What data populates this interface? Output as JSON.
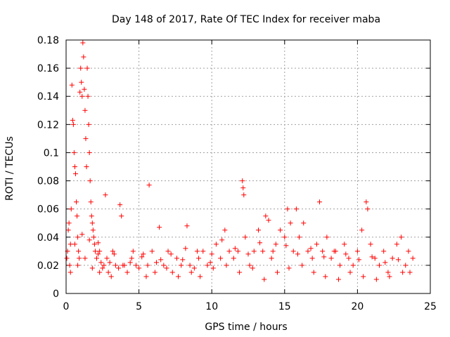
{
  "chart_data": {
    "type": "scatter",
    "title": "Day 148 of 2017, Rate Of TEC Index for receiver maba",
    "xlabel": "GPS time / hours",
    "ylabel": "ROTI / TECUs",
    "xlim": [
      0,
      25
    ],
    "ylim": [
      0,
      0.18
    ],
    "xticks": [
      0,
      5,
      10,
      15,
      20,
      25
    ],
    "yticks": [
      0,
      0.02,
      0.04,
      0.06,
      0.08,
      0.1,
      0.12,
      0.14,
      0.16,
      0.18
    ],
    "xtick_labels": [
      "0",
      "5",
      "10",
      "15",
      "20",
      "25"
    ],
    "ytick_labels": [
      "0",
      "0.02",
      "0.04",
      "0.06",
      "0.08",
      "0.1",
      "0.12",
      "0.14",
      "0.16",
      "0.18"
    ],
    "grid": true,
    "marker": "+",
    "color": "#ff0000",
    "points": [
      [
        0.05,
        0.025
      ],
      [
        0.1,
        0.03
      ],
      [
        0.15,
        0.045
      ],
      [
        0.2,
        0.05
      ],
      [
        0.25,
        0.02
      ],
      [
        0.3,
        0.035
      ],
      [
        0.35,
        0.06
      ],
      [
        0.4,
        0.148
      ],
      [
        0.45,
        0.123
      ],
      [
        0.5,
        0.12
      ],
      [
        0.55,
        0.1
      ],
      [
        0.6,
        0.09
      ],
      [
        0.65,
        0.085
      ],
      [
        0.7,
        0.065
      ],
      [
        0.75,
        0.055
      ],
      [
        0.8,
        0.04
      ],
      [
        0.85,
        0.03
      ],
      [
        0.9,
        0.025
      ],
      [
        0.95,
        0.143
      ],
      [
        1.0,
        0.16
      ],
      [
        1.05,
        0.15
      ],
      [
        1.1,
        0.14
      ],
      [
        1.15,
        0.178
      ],
      [
        1.2,
        0.168
      ],
      [
        1.25,
        0.145
      ],
      [
        1.3,
        0.13
      ],
      [
        1.35,
        0.11
      ],
      [
        1.4,
        0.09
      ],
      [
        1.45,
        0.16
      ],
      [
        1.5,
        0.14
      ],
      [
        1.55,
        0.12
      ],
      [
        1.6,
        0.1
      ],
      [
        1.65,
        0.08
      ],
      [
        1.7,
        0.065
      ],
      [
        1.75,
        0.055
      ],
      [
        1.8,
        0.05
      ],
      [
        1.85,
        0.045
      ],
      [
        1.9,
        0.04
      ],
      [
        1.95,
        0.035
      ],
      [
        2.0,
        0.03
      ],
      [
        2.1,
        0.025
      ],
      [
        2.2,
        0.028
      ],
      [
        2.3,
        0.03
      ],
      [
        2.4,
        0.022
      ],
      [
        2.5,
        0.018
      ],
      [
        2.6,
        0.02
      ],
      [
        2.7,
        0.07
      ],
      [
        2.8,
        0.025
      ],
      [
        2.9,
        0.015
      ],
      [
        3.0,
        0.022
      ],
      [
        3.2,
        0.03
      ],
      [
        3.4,
        0.02
      ],
      [
        3.6,
        0.018
      ],
      [
        3.7,
        0.063
      ],
      [
        3.8,
        0.055
      ],
      [
        3.9,
        0.02
      ],
      [
        4.2,
        0.015
      ],
      [
        4.5,
        0.025
      ],
      [
        4.8,
        0.02
      ],
      [
        5.0,
        0.018
      ],
      [
        5.3,
        0.028
      ],
      [
        5.6,
        0.02
      ],
      [
        5.7,
        0.077
      ],
      [
        5.9,
        0.03
      ],
      [
        6.2,
        0.022
      ],
      [
        6.4,
        0.047
      ],
      [
        6.7,
        0.02
      ],
      [
        7.0,
        0.03
      ],
      [
        7.3,
        0.015
      ],
      [
        7.6,
        0.025
      ],
      [
        7.9,
        0.02
      ],
      [
        8.2,
        0.032
      ],
      [
        8.3,
        0.048
      ],
      [
        8.5,
        0.02
      ],
      [
        8.8,
        0.018
      ],
      [
        9.1,
        0.025
      ],
      [
        9.4,
        0.03
      ],
      [
        9.7,
        0.02
      ],
      [
        10.0,
        0.028
      ],
      [
        10.3,
        0.035
      ],
      [
        10.6,
        0.025
      ],
      [
        10.9,
        0.045
      ],
      [
        11.2,
        0.03
      ],
      [
        11.5,
        0.025
      ],
      [
        11.8,
        0.03
      ],
      [
        12.1,
        0.08
      ],
      [
        12.15,
        0.075
      ],
      [
        12.2,
        0.07
      ],
      [
        12.3,
        0.04
      ],
      [
        12.6,
        0.02
      ],
      [
        12.9,
        0.03
      ],
      [
        13.2,
        0.045
      ],
      [
        13.5,
        0.03
      ],
      [
        13.7,
        0.055
      ],
      [
        13.9,
        0.052
      ],
      [
        14.1,
        0.025
      ],
      [
        14.4,
        0.035
      ],
      [
        14.7,
        0.045
      ],
      [
        15.0,
        0.04
      ],
      [
        15.2,
        0.06
      ],
      [
        15.4,
        0.05
      ],
      [
        15.6,
        0.03
      ],
      [
        15.8,
        0.06
      ],
      [
        16.0,
        0.04
      ],
      [
        16.3,
        0.05
      ],
      [
        16.6,
        0.03
      ],
      [
        16.9,
        0.025
      ],
      [
        17.2,
        0.035
      ],
      [
        17.4,
        0.065
      ],
      [
        17.6,
        0.03
      ],
      [
        17.9,
        0.04
      ],
      [
        18.2,
        0.025
      ],
      [
        18.5,
        0.03
      ],
      [
        18.8,
        0.02
      ],
      [
        19.1,
        0.035
      ],
      [
        19.4,
        0.025
      ],
      [
        19.7,
        0.02
      ],
      [
        20.0,
        0.03
      ],
      [
        20.3,
        0.045
      ],
      [
        20.6,
        0.065
      ],
      [
        20.7,
        0.06
      ],
      [
        20.9,
        0.035
      ],
      [
        21.2,
        0.025
      ],
      [
        21.5,
        0.02
      ],
      [
        21.8,
        0.03
      ],
      [
        22.1,
        0.015
      ],
      [
        22.4,
        0.025
      ],
      [
        22.7,
        0.035
      ],
      [
        23.0,
        0.04
      ],
      [
        23.3,
        0.02
      ],
      [
        23.6,
        0.015
      ],
      [
        23.8,
        0.025
      ],
      [
        0.3,
        0.015
      ],
      [
        0.8,
        0.02
      ],
      [
        1.3,
        0.025
      ],
      [
        1.8,
        0.018
      ],
      [
        2.3,
        0.015
      ],
      [
        3.1,
        0.012
      ],
      [
        4.0,
        0.02
      ],
      [
        4.6,
        0.03
      ],
      [
        5.5,
        0.012
      ],
      [
        6.1,
        0.015
      ],
      [
        6.9,
        0.018
      ],
      [
        7.7,
        0.012
      ],
      [
        8.6,
        0.015
      ],
      [
        9.2,
        0.012
      ],
      [
        10.1,
        0.018
      ],
      [
        11.0,
        0.02
      ],
      [
        11.9,
        0.015
      ],
      [
        12.8,
        0.018
      ],
      [
        13.6,
        0.01
      ],
      [
        14.5,
        0.015
      ],
      [
        15.3,
        0.018
      ],
      [
        16.2,
        0.02
      ],
      [
        17.0,
        0.015
      ],
      [
        17.8,
        0.012
      ],
      [
        18.7,
        0.01
      ],
      [
        19.5,
        0.015
      ],
      [
        20.4,
        0.012
      ],
      [
        21.3,
        0.01
      ],
      [
        22.2,
        0.012
      ],
      [
        23.1,
        0.015
      ],
      [
        0.6,
        0.035
      ],
      [
        1.1,
        0.042
      ],
      [
        1.6,
        0.038
      ],
      [
        2.2,
        0.036
      ],
      [
        3.3,
        0.028
      ],
      [
        4.4,
        0.022
      ],
      [
        5.2,
        0.026
      ],
      [
        6.5,
        0.024
      ],
      [
        7.2,
        0.028
      ],
      [
        8.0,
        0.024
      ],
      [
        9.0,
        0.03
      ],
      [
        9.9,
        0.022
      ],
      [
        10.7,
        0.038
      ],
      [
        11.6,
        0.032
      ],
      [
        12.5,
        0.028
      ],
      [
        13.3,
        0.036
      ],
      [
        14.2,
        0.03
      ],
      [
        15.1,
        0.034
      ],
      [
        15.9,
        0.028
      ],
      [
        16.8,
        0.032
      ],
      [
        17.7,
        0.026
      ],
      [
        18.4,
        0.03
      ],
      [
        19.2,
        0.028
      ],
      [
        20.1,
        0.024
      ],
      [
        21.0,
        0.026
      ],
      [
        21.9,
        0.022
      ],
      [
        22.8,
        0.024
      ],
      [
        23.5,
        0.03
      ]
    ]
  }
}
